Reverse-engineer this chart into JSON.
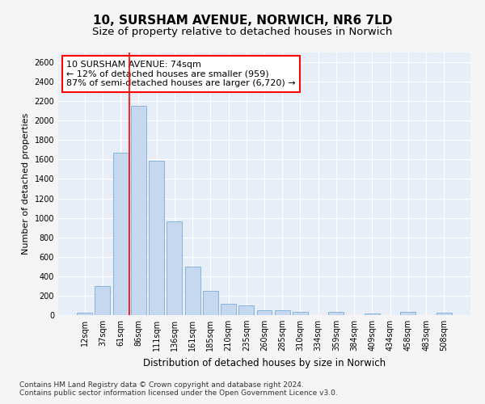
{
  "title": "10, SURSHAM AVENUE, NORWICH, NR6 7LD",
  "subtitle": "Size of property relative to detached houses in Norwich",
  "xlabel": "Distribution of detached houses by size in Norwich",
  "ylabel": "Number of detached properties",
  "bar_color": "#c5d8ef",
  "bar_edge_color": "#7aadd4",
  "background_color": "#e8eef8",
  "grid_color": "#ffffff",
  "categories": [
    "12sqm",
    "37sqm",
    "61sqm",
    "86sqm",
    "111sqm",
    "136sqm",
    "161sqm",
    "185sqm",
    "210sqm",
    "235sqm",
    "260sqm",
    "285sqm",
    "310sqm",
    "334sqm",
    "359sqm",
    "384sqm",
    "409sqm",
    "434sqm",
    "458sqm",
    "483sqm",
    "508sqm"
  ],
  "values": [
    25,
    300,
    1670,
    2150,
    1590,
    960,
    500,
    250,
    120,
    100,
    50,
    50,
    35,
    0,
    35,
    0,
    20,
    0,
    30,
    0,
    25
  ],
  "ylim": [
    0,
    2700
  ],
  "yticks": [
    0,
    200,
    400,
    600,
    800,
    1000,
    1200,
    1400,
    1600,
    1800,
    2000,
    2200,
    2400,
    2600
  ],
  "red_line_x": 2.5,
  "annotation_text": "10 SURSHAM AVENUE: 74sqm\n← 12% of detached houses are smaller (959)\n87% of semi-detached houses are larger (6,720) →",
  "footnote1": "Contains HM Land Registry data © Crown copyright and database right 2024.",
  "footnote2": "Contains public sector information licensed under the Open Government Licence v3.0.",
  "title_fontsize": 11,
  "subtitle_fontsize": 9.5,
  "xlabel_fontsize": 8.5,
  "ylabel_fontsize": 8,
  "annotation_fontsize": 8,
  "tick_fontsize": 7,
  "footnote_fontsize": 6.5
}
